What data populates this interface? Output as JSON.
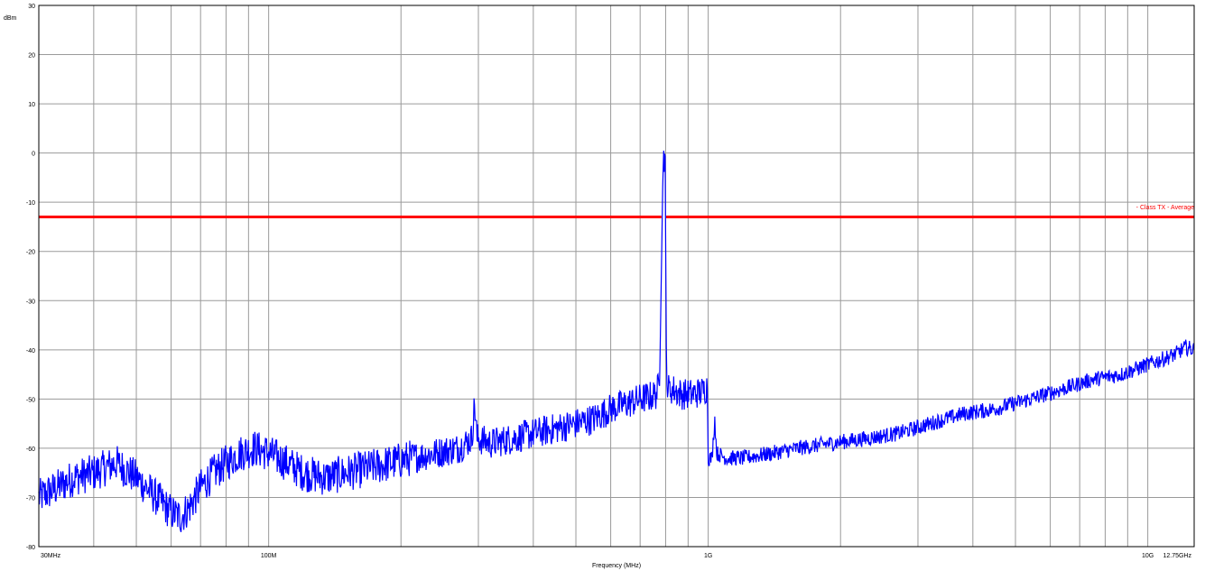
{
  "chart_data": {
    "type": "line",
    "title": "",
    "xlabel": "Frequency (MHz)",
    "ylabel": "dBm",
    "x_scale": "log",
    "xlim": [
      30,
      12750
    ],
    "ylim": [
      -80,
      30
    ],
    "grid": true,
    "y_ticks": [
      30,
      20,
      10,
      0,
      -10,
      -20,
      -30,
      -40,
      -50,
      -60,
      -70,
      -80
    ],
    "y_tick_labels": [
      "30",
      "20",
      "10",
      "0",
      "-10",
      "-20",
      "-30",
      "-40",
      "-50",
      "-60",
      "-70",
      "-80"
    ],
    "x_tick_labels": [
      {
        "x": 30,
        "label": "30MHz"
      },
      {
        "x": 100,
        "label": "100M"
      },
      {
        "x": 1000,
        "label": "1G"
      },
      {
        "x": 10000,
        "label": "10G"
      },
      {
        "x": 12750,
        "label": "12.75GHz"
      }
    ],
    "series": [
      {
        "name": "",
        "color": "#0000ff",
        "points": [
          [
            30,
            -70
          ],
          [
            33,
            -68
          ],
          [
            36,
            -66
          ],
          [
            40,
            -65
          ],
          [
            45,
            -63
          ],
          [
            50,
            -66
          ],
          [
            54,
            -69
          ],
          [
            57,
            -71
          ],
          [
            60,
            -73
          ],
          [
            63,
            -74
          ],
          [
            66,
            -72
          ],
          [
            70,
            -68
          ],
          [
            75,
            -65
          ],
          [
            80,
            -63
          ],
          [
            86,
            -61
          ],
          [
            93,
            -60
          ],
          [
            100,
            -61
          ],
          [
            110,
            -63
          ],
          [
            120,
            -65
          ],
          [
            135,
            -66
          ],
          [
            150,
            -65
          ],
          [
            170,
            -64
          ],
          [
            190,
            -63
          ],
          [
            210,
            -62
          ],
          [
            240,
            -61
          ],
          [
            270,
            -60
          ],
          [
            290,
            -58
          ],
          [
            294,
            -51
          ],
          [
            298,
            -58
          ],
          [
            320,
            -59
          ],
          [
            360,
            -58
          ],
          [
            400,
            -57
          ],
          [
            450,
            -56
          ],
          [
            500,
            -55
          ],
          [
            550,
            -54
          ],
          [
            600,
            -52
          ],
          [
            650,
            -51
          ],
          [
            700,
            -50
          ],
          [
            740,
            -49.5
          ],
          [
            760,
            -49
          ],
          [
            775,
            -47
          ],
          [
            790,
            -0.5
          ],
          [
            798,
            -1
          ],
          [
            803,
            -40
          ],
          [
            808,
            -48
          ],
          [
            830,
            -48
          ],
          [
            870,
            -49
          ],
          [
            920,
            -49
          ],
          [
            970,
            -48.5
          ],
          [
            995,
            -47.5
          ],
          [
            1000,
            -62
          ],
          [
            1020,
            -62
          ],
          [
            1035,
            -54
          ],
          [
            1045,
            -61
          ],
          [
            1100,
            -62
          ],
          [
            1200,
            -62
          ],
          [
            1400,
            -61
          ],
          [
            1600,
            -60
          ],
          [
            1900,
            -59
          ],
          [
            2300,
            -58
          ],
          [
            2700,
            -57
          ],
          [
            3200,
            -55
          ],
          [
            3800,
            -53
          ],
          [
            4500,
            -52
          ],
          [
            5400,
            -50
          ],
          [
            6400,
            -48
          ],
          [
            7500,
            -46
          ],
          [
            8700,
            -45
          ],
          [
            10000,
            -43
          ],
          [
            11500,
            -41
          ],
          [
            12200,
            -39.5
          ],
          [
            12750,
            -40
          ]
        ]
      }
    ],
    "limit_line": {
      "label": "- Class TX - Average",
      "y": -13,
      "color": "#ff0000",
      "gap_x": [
        790,
        810
      ]
    }
  }
}
